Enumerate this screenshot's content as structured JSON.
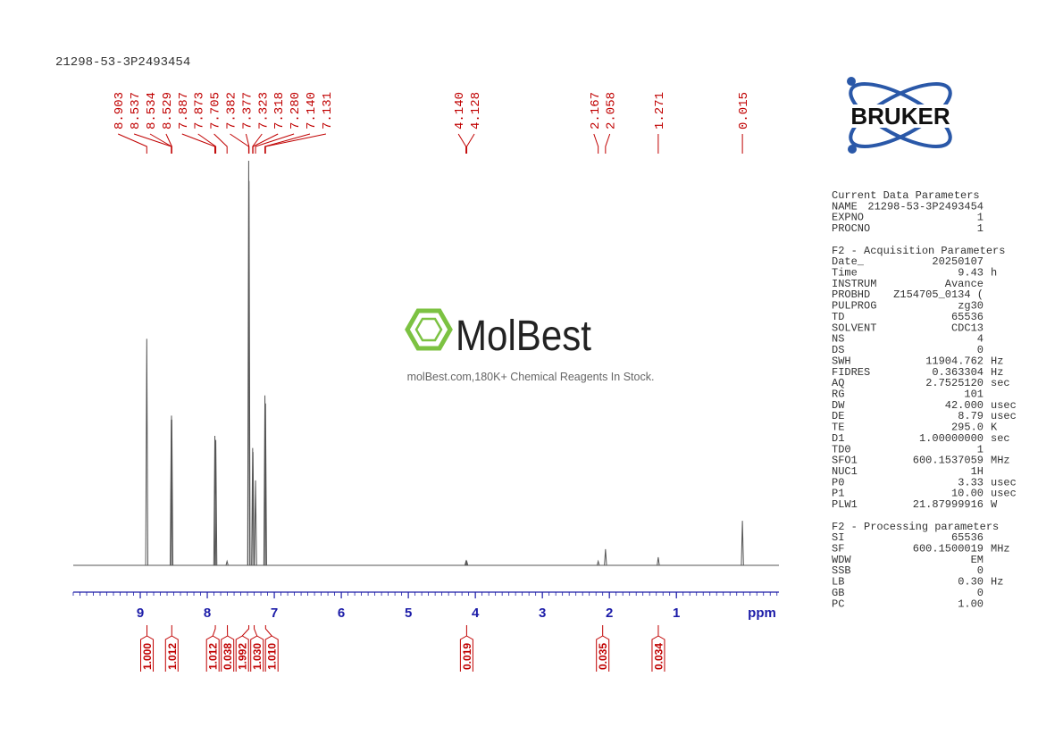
{
  "chart_data": {
    "type": "spectrum",
    "title": "21298-53-3P2493454",
    "x_label": "ppm",
    "xlim": [
      10,
      -0.53
    ],
    "xticks": [
      9,
      8,
      7,
      6,
      5,
      4,
      3,
      2,
      1
    ],
    "minor_tick_step": 0.1,
    "ylim": [
      0,
      100
    ],
    "color": "#555555",
    "axis_color": "#1c1ca8",
    "label_color": "#c00000",
    "peak_labels": [
      8.903,
      8.537,
      8.534,
      8.529,
      7.887,
      7.873,
      7.705,
      7.382,
      7.377,
      7.323,
      7.318,
      {
        "value": 7.28,
        "label": "7.280"
      },
      {
        "value": 7.14,
        "label": "7.140"
      },
      7.131,
      {
        "value": 4.14,
        "label": "4.140"
      },
      4.128,
      2.167,
      2.058,
      1.271,
      0.015
    ],
    "peak_intensities": [
      56,
      36,
      37,
      36,
      32,
      31,
      1,
      100,
      95,
      29,
      28,
      21,
      42,
      40,
      1,
      1,
      1,
      4,
      2,
      11
    ],
    "integrals": [
      {
        "ppm": 8.9,
        "value": 1,
        "label": "1.000"
      },
      {
        "ppm": 8.53,
        "value": 1.012,
        "label": "1.012"
      },
      {
        "ppm": 7.88,
        "value": 1.012,
        "label": "1.012"
      },
      {
        "ppm": 7.7,
        "value": 0.038,
        "label": "0.038"
      },
      {
        "ppm": 7.38,
        "value": 1.992,
        "label": "1.992"
      },
      {
        "ppm": 7.3,
        "value": 1.03,
        "label": "1.030"
      },
      {
        "ppm": 7.13,
        "value": 1.01,
        "label": "1.010"
      },
      {
        "ppm": 4.13,
        "value": 0.019,
        "label": "0.019"
      },
      {
        "ppm": 2.1,
        "value": 0.035,
        "label": "0.035"
      },
      {
        "ppm": 1.27,
        "value": 0.034,
        "label": "0.034"
      }
    ]
  },
  "watermark": {
    "brand": "MolBest",
    "tagline": "molBest.com,180K+ Chemical Reagents In Stock."
  },
  "logo": {
    "text": "BRUKER"
  },
  "parameters": [
    {
      "title": "Current Data Parameters",
      "rows": [
        [
          "NAME",
          "21298-53-3P2493454",
          ""
        ],
        [
          "EXPNO",
          "1",
          ""
        ],
        [
          "PROCNO",
          "1",
          ""
        ]
      ]
    },
    {
      "title": "F2 - Acquisition Parameters",
      "rows": [
        [
          "Date_",
          "20250107",
          ""
        ],
        [
          "Time",
          "9.43",
          "h"
        ],
        [
          "INSTRUM",
          "Avance",
          ""
        ],
        [
          "PROBHD",
          "Z154705_0134 (",
          ""
        ],
        [
          "PULPROG",
          "zg30",
          ""
        ],
        [
          "TD",
          "65536",
          ""
        ],
        [
          "SOLVENT",
          "CDC13",
          ""
        ],
        [
          "NS",
          "4",
          ""
        ],
        [
          "DS",
          "0",
          ""
        ],
        [
          "SWH",
          "11904.762",
          "Hz"
        ],
        [
          "FIDRES",
          "0.363304",
          "Hz"
        ],
        [
          "AQ",
          "2.7525120",
          "sec"
        ],
        [
          "RG",
          "101",
          ""
        ],
        [
          "DW",
          "42.000",
          "usec"
        ],
        [
          "DE",
          "8.79",
          "usec"
        ],
        [
          "TE",
          "295.0",
          "K"
        ],
        [
          "D1",
          "1.00000000",
          "sec"
        ],
        [
          "TD0",
          "1",
          ""
        ],
        [
          "SFO1",
          "600.1537059",
          "MHz"
        ],
        [
          "NUC1",
          "1H",
          ""
        ],
        [
          "P0",
          "3.33",
          "usec"
        ],
        [
          "P1",
          "10.00",
          "usec"
        ],
        [
          "PLW1",
          "21.87999916",
          "W"
        ]
      ]
    },
    {
      "title": "F2 - Processing parameters",
      "rows": [
        [
          "SI",
          "65536",
          ""
        ],
        [
          "SF",
          "600.1500019",
          "MHz"
        ],
        [
          "WDW",
          "EM",
          ""
        ],
        [
          "SSB",
          "0",
          ""
        ],
        [
          "LB",
          "0.30",
          "Hz"
        ],
        [
          "GB",
          "0",
          ""
        ],
        [
          "PC",
          "1.00",
          ""
        ]
      ]
    }
  ]
}
